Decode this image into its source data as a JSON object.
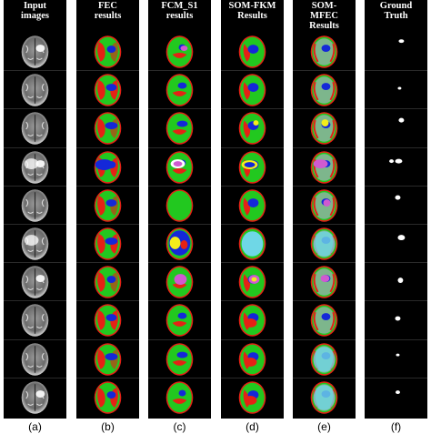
{
  "columns": [
    {
      "title": "Input\nimages",
      "label": "(a)",
      "style": "gray"
    },
    {
      "title": "FEC\nresults",
      "label": "(b)",
      "style": "fec"
    },
    {
      "title": "FCM_S1\nresults",
      "label": "(c)",
      "style": "fcm"
    },
    {
      "title": "SOM-FKM\nResults",
      "label": "(d)",
      "style": "som"
    },
    {
      "title": "SOM-\nMFEC\nResults",
      "label": "(e)",
      "style": "mfec"
    },
    {
      "title": "Ground\nTruth",
      "label": "(f)",
      "style": "gt"
    }
  ],
  "rows": 10,
  "colors": {
    "green": "#22c81f",
    "red": "#e52215",
    "blue": "#1428d8",
    "yellow": "#f4ec1c",
    "cyan": "#6fd7e6",
    "magenta": "#d05ad0",
    "lavender": "#c9a7e6",
    "white": "#ffffff",
    "black": "#000000"
  }
}
